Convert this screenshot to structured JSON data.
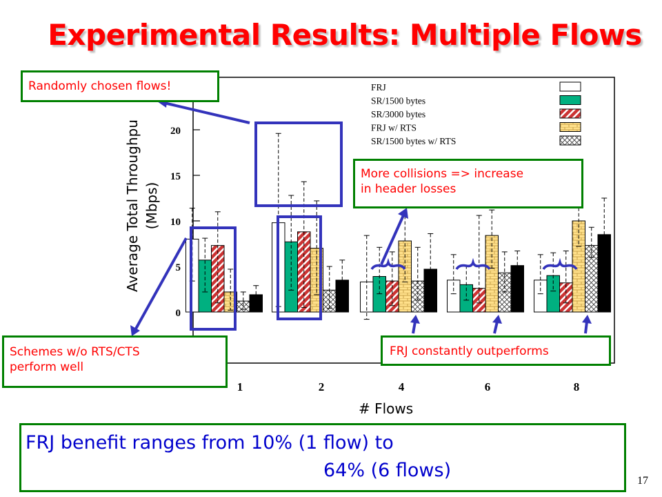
{
  "title": "Experimental Results: Multiple Flows",
  "chart_data": {
    "type": "bar",
    "categories": [
      "1",
      "2",
      "4",
      "6",
      "8"
    ],
    "xlabel": "# Flows",
    "ylabel_lines": [
      "Average Total Throughpu",
      "(Mbps)"
    ],
    "yticks": [
      0,
      5,
      10,
      15,
      20
    ],
    "ylim": [
      -6,
      26
    ],
    "series": [
      {
        "name": "FRJ",
        "color": "#ffffff",
        "pattern": "none",
        "values": [
          8,
          9.8,
          3.3,
          3.5,
          3.5
        ],
        "err_low": [
          4.6,
          9.2,
          4.1,
          1.5,
          1.5
        ],
        "err_high": [
          3.4,
          9.8,
          5.1,
          2.8,
          2.8
        ]
      },
      {
        "name": "SR/1500 bytes",
        "color": "#00b080",
        "pattern": "none",
        "values": [
          5.7,
          7.7,
          3.9,
          3,
          4
        ],
        "err_low": [
          3.5,
          5.3,
          1.9,
          1.7,
          1.7
        ],
        "err_high": [
          2.4,
          5.1,
          3.2,
          2.1,
          2.5
        ]
      },
      {
        "name": "SR/3000 bytes",
        "color": "#cc3333",
        "pattern": "stripes",
        "values": [
          7.3,
          8.8,
          3.4,
          2.6,
          3.2
        ],
        "err_low": [
          6.3,
          8.3,
          2.7,
          1.6,
          2.2
        ],
        "err_high": [
          3.7,
          5.5,
          3.2,
          8,
          3.5
        ]
      },
      {
        "name": "FRJ w/ RTS",
        "color": "#ffe08a",
        "pattern": "bricks",
        "values": [
          2.2,
          7,
          7.8,
          8.4,
          10
        ],
        "err_low": [
          2,
          5.1,
          4.5,
          3.6,
          2.8
        ],
        "err_high": [
          2.5,
          5.2,
          6.4,
          2.8,
          5.7
        ]
      },
      {
        "name": "SR/1500 bytes w/ RTS",
        "color": "#ffffff",
        "pattern": "crosshatch",
        "values": [
          1.2,
          2.4,
          3.4,
          4.3,
          7.3
        ],
        "err_low": [
          0.9,
          2,
          2.1,
          2.1,
          1.3
        ],
        "err_high": [
          1,
          2.6,
          3.7,
          2.3,
          2
        ]
      },
      {
        "name": "",
        "color": "#000000",
        "pattern": "none",
        "values": [
          1.9,
          3.5,
          4.7,
          5.1,
          8.5
        ],
        "err_low": [
          0.8,
          1.6,
          2.1,
          1.1,
          1.3
        ],
        "err_high": [
          1,
          2.2,
          3.9,
          1.6,
          4
        ]
      }
    ],
    "grid": false,
    "legend_position": "top-right"
  },
  "callouts": {
    "random_flows": "Randomly chosen flows!",
    "collisions": [
      "More collisions => increase",
      "in header losses"
    ],
    "schemes": [
      "Schemes w/o RTS/CTS",
      "perform well"
    ],
    "frj_outperforms": "FRJ constantly outperforms"
  },
  "conclusion": {
    "line1": "FRJ benefit ranges from 10% (1 flow) to",
    "line2": "64% (6 flows)"
  },
  "page_number": "17",
  "colors": {
    "title": "#ff0000",
    "callout_border": "#008000",
    "callout_text": "#ff0000",
    "highlight": "#3333bb",
    "conclusion_text": "#0000cc"
  }
}
